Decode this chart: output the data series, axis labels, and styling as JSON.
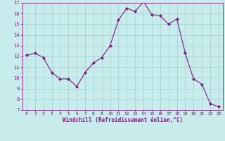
{
  "x": [
    0,
    1,
    2,
    3,
    4,
    5,
    6,
    7,
    8,
    9,
    10,
    11,
    12,
    13,
    14,
    15,
    16,
    17,
    18,
    19,
    20,
    21,
    22,
    23
  ],
  "y": [
    12.1,
    12.3,
    11.9,
    10.5,
    9.9,
    9.9,
    9.2,
    10.5,
    11.4,
    11.9,
    13.0,
    15.4,
    16.5,
    16.2,
    17.1,
    15.9,
    15.8,
    15.0,
    15.5,
    12.3,
    9.9,
    9.4,
    7.6,
    7.3
  ],
  "xlabel": "Windchill (Refroidissement éolien,°C)",
  "line_color": "#7b1a7b",
  "marker_color": "#7b1a7b",
  "bg_color": "#c8ecec",
  "grid_color": "#9ecece",
  "tick_color": "#7b1a7b",
  "label_color": "#7b1a7b",
  "ylim": [
    7,
    17
  ],
  "xlim": [
    -0.5,
    23.5
  ],
  "yticks": [
    7,
    8,
    9,
    10,
    11,
    12,
    13,
    14,
    15,
    16,
    17
  ],
  "xticks": [
    0,
    1,
    2,
    3,
    4,
    5,
    6,
    7,
    8,
    9,
    10,
    11,
    12,
    13,
    14,
    15,
    16,
    17,
    18,
    19,
    20,
    21,
    22,
    23
  ]
}
